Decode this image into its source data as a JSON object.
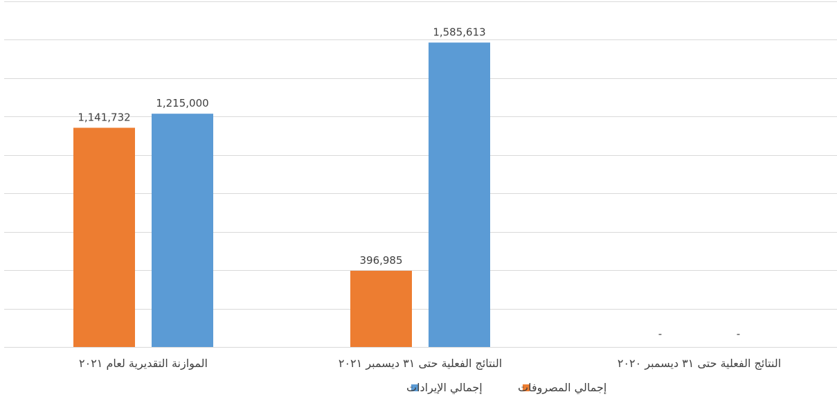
{
  "chart_data": {
    "type": "bar",
    "categories": [
      "الموازنة التقديرية لعام ٢٠٢١",
      "النتائج الفعلية حتى ٣١ ديسمبر ٢٠٢١",
      "النتائج الفعلية حتى ٣١ ديسمبر ٢٠٢٠"
    ],
    "series": [
      {
        "name": "إجمالي المصروفات",
        "color": "#ed7d31",
        "values": [
          1141732,
          396985,
          0
        ],
        "labels": [
          "1,141,732",
          "396,985",
          "-"
        ]
      },
      {
        "name": "إجمالي الإيرادات",
        "color": "#5b9bd5",
        "values": [
          1215000,
          1585613,
          0
        ],
        "labels": [
          "1,215,000",
          "1,585,613",
          "-"
        ]
      }
    ],
    "ylim": [
      0,
      1800000
    ],
    "y_grid_step": 200000,
    "grid": true,
    "legend_placement": "bottom",
    "title": "",
    "xlabel": "",
    "ylabel": ""
  }
}
